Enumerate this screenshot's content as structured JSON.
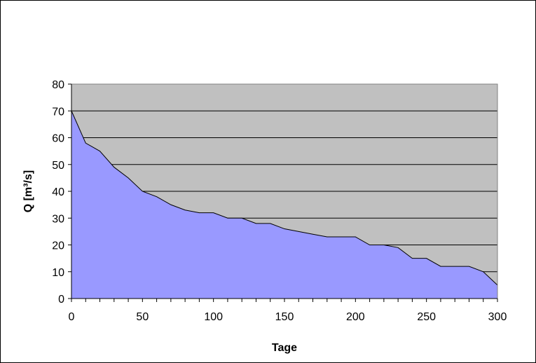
{
  "chart_data": {
    "type": "area",
    "xlabel": "Tage",
    "ylabel": "Q [m³/s]",
    "xlim": [
      0,
      300
    ],
    "ylim": [
      0,
      80
    ],
    "x_ticks": [
      0,
      50,
      100,
      150,
      200,
      250,
      300
    ],
    "y_ticks": [
      0,
      10,
      20,
      30,
      40,
      50,
      60,
      70,
      80
    ],
    "x_minor_step": 10,
    "grid": "horizontal",
    "legend": "none",
    "series": [
      {
        "x": [
          0,
          10,
          20,
          30,
          40,
          50,
          60,
          70,
          80,
          90,
          100,
          110,
          120,
          130,
          140,
          150,
          160,
          170,
          180,
          190,
          200,
          210,
          220,
          230,
          240,
          250,
          260,
          270,
          280,
          290,
          300
        ],
        "values": [
          70,
          58,
          55,
          49,
          45,
          40,
          38,
          35,
          33,
          32,
          32,
          30,
          30,
          28,
          28,
          26,
          25,
          24,
          23,
          23,
          23,
          20,
          20,
          19,
          15,
          15,
          12,
          12,
          12,
          10,
          5
        ]
      }
    ],
    "colors": {
      "plot_background": "#c0c0c0",
      "area_fill": "#9999ff",
      "line": "#000000",
      "gridline": "#000000",
      "frame": "#000000"
    }
  }
}
